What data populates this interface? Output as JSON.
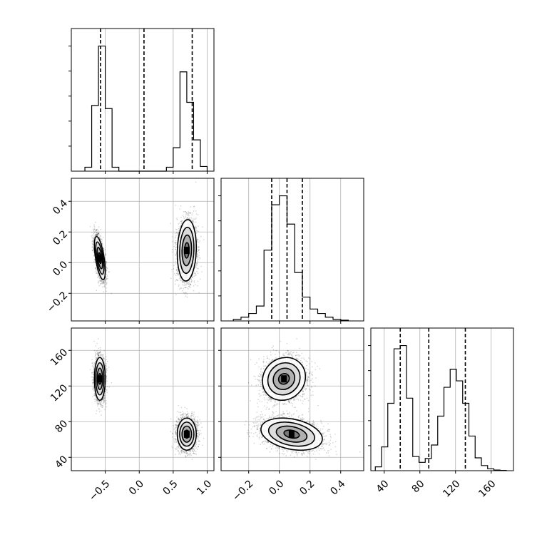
{
  "chart_data": {
    "type": "corner",
    "title": "",
    "grid": true,
    "parameters": [
      "",
      "",
      ""
    ],
    "ranges": [
      [
        -1.0,
        1.1
      ],
      [
        -0.38,
        0.55
      ],
      [
        25,
        185
      ]
    ],
    "ticks": [
      [
        -0.5,
        0.0,
        0.5,
        1.0
      ],
      [
        -0.2,
        0.0,
        0.2,
        0.4
      ],
      [
        40,
        80,
        120,
        160
      ]
    ],
    "tick_labels": [
      [
        "−0.5",
        "0.0",
        "0.5",
        "1.0"
      ],
      [
        "−0.2",
        "0.0",
        "0.2",
        "0.4"
      ],
      [
        "40",
        "80",
        "120",
        "160"
      ]
    ],
    "quantiles": [
      [
        -0.57,
        0.07,
        0.78
      ],
      [
        -0.05,
        0.05,
        0.15
      ],
      [
        58,
        90,
        131
      ]
    ],
    "histograms": [
      {
        "bin_edges": [
          -0.8,
          -0.7,
          -0.6,
          -0.5,
          -0.4,
          -0.3,
          -0.2,
          -0.1,
          0.0,
          0.1,
          0.2,
          0.3,
          0.4,
          0.5,
          0.6,
          0.7,
          0.8,
          0.9,
          1.0
        ],
        "counts": [
          50,
          840,
          1600,
          800,
          50,
          0,
          0,
          0,
          0,
          0,
          0,
          0,
          50,
          300,
          1270,
          880,
          400,
          60
        ]
      },
      {
        "bin_edges": [
          -0.3,
          -0.25,
          -0.2,
          -0.15,
          -0.1,
          -0.05,
          0.0,
          0.05,
          0.1,
          0.15,
          0.2,
          0.25,
          0.3,
          0.35,
          0.4,
          0.45
        ],
        "counts": [
          20,
          50,
          100,
          200,
          950,
          1560,
          1680,
          1300,
          650,
          320,
          160,
          100,
          50,
          20,
          10
        ]
      },
      {
        "bin_edges": [
          30,
          37,
          44,
          51,
          58,
          65,
          72,
          79,
          86,
          93,
          100,
          107,
          114,
          121,
          128,
          135,
          142,
          149,
          156,
          163,
          170,
          177
        ],
        "counts": [
          60,
          370,
          1050,
          1900,
          1950,
          1130,
          220,
          130,
          190,
          400,
          850,
          1300,
          1580,
          1400,
          1050,
          540,
          200,
          80,
          30,
          10,
          5
        ]
      }
    ],
    "clusters": [
      {
        "mean": [
          -0.58,
          0.03,
          128
        ],
        "sd": [
          0.04,
          0.07,
          12
        ],
        "rho": [
          [
            1,
            -0.6,
            0
          ],
          [
            -0.6,
            1,
            0.1
          ],
          [
            0,
            0.1,
            1
          ]
        ],
        "weight": 0.5
      },
      {
        "mean": [
          0.7,
          0.08,
          66
        ],
        "sd": [
          0.07,
          0.1,
          9
        ],
        "rho": [
          [
            1,
            0.1,
            0
          ],
          [
            0.1,
            1,
            -0.3
          ],
          [
            0,
            -0.3,
            1
          ]
        ],
        "weight": 0.5
      }
    ],
    "samples_per_cluster": 2500
  }
}
